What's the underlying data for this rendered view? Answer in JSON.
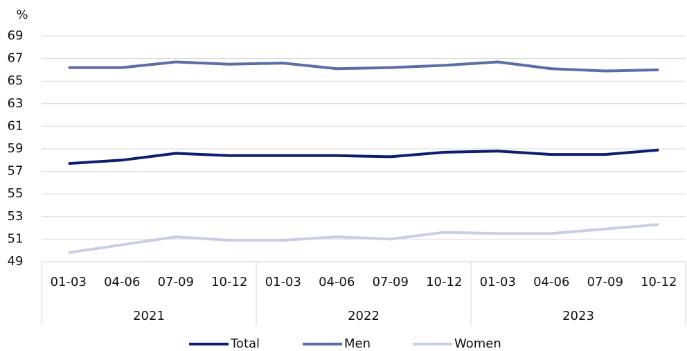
{
  "chart_data": {
    "type": "line",
    "y_label": "%",
    "categories": [
      "01-03",
      "04-06",
      "07-09",
      "10-12",
      "01-03",
      "04-06",
      "07-09",
      "10-12",
      "01-03",
      "04-06",
      "07-09",
      "10-12"
    ],
    "category_groups": [
      "2021",
      "2022",
      "2023"
    ],
    "series": [
      {
        "name": "Total",
        "color": "#0b1f6e",
        "values": [
          57.7,
          58.0,
          58.6,
          58.4,
          58.4,
          58.4,
          58.3,
          58.7,
          58.8,
          58.5,
          58.5,
          58.9
        ]
      },
      {
        "name": "Men",
        "color": "#5b6da6",
        "values": [
          66.2,
          66.2,
          66.7,
          66.5,
          66.6,
          66.1,
          66.2,
          66.4,
          66.7,
          66.1,
          65.9,
          66.0
        ]
      },
      {
        "name": "Women",
        "color": "#c9cee4",
        "values": [
          49.8,
          50.5,
          51.2,
          50.9,
          50.9,
          51.2,
          51.0,
          51.6,
          51.5,
          51.5,
          51.9,
          52.3
        ]
      }
    ],
    "ylim": [
      49,
      69
    ],
    "yticks": [
      49,
      51,
      53,
      55,
      57,
      59,
      61,
      63,
      65,
      67,
      69
    ],
    "grid": true,
    "legend": "bottom"
  }
}
